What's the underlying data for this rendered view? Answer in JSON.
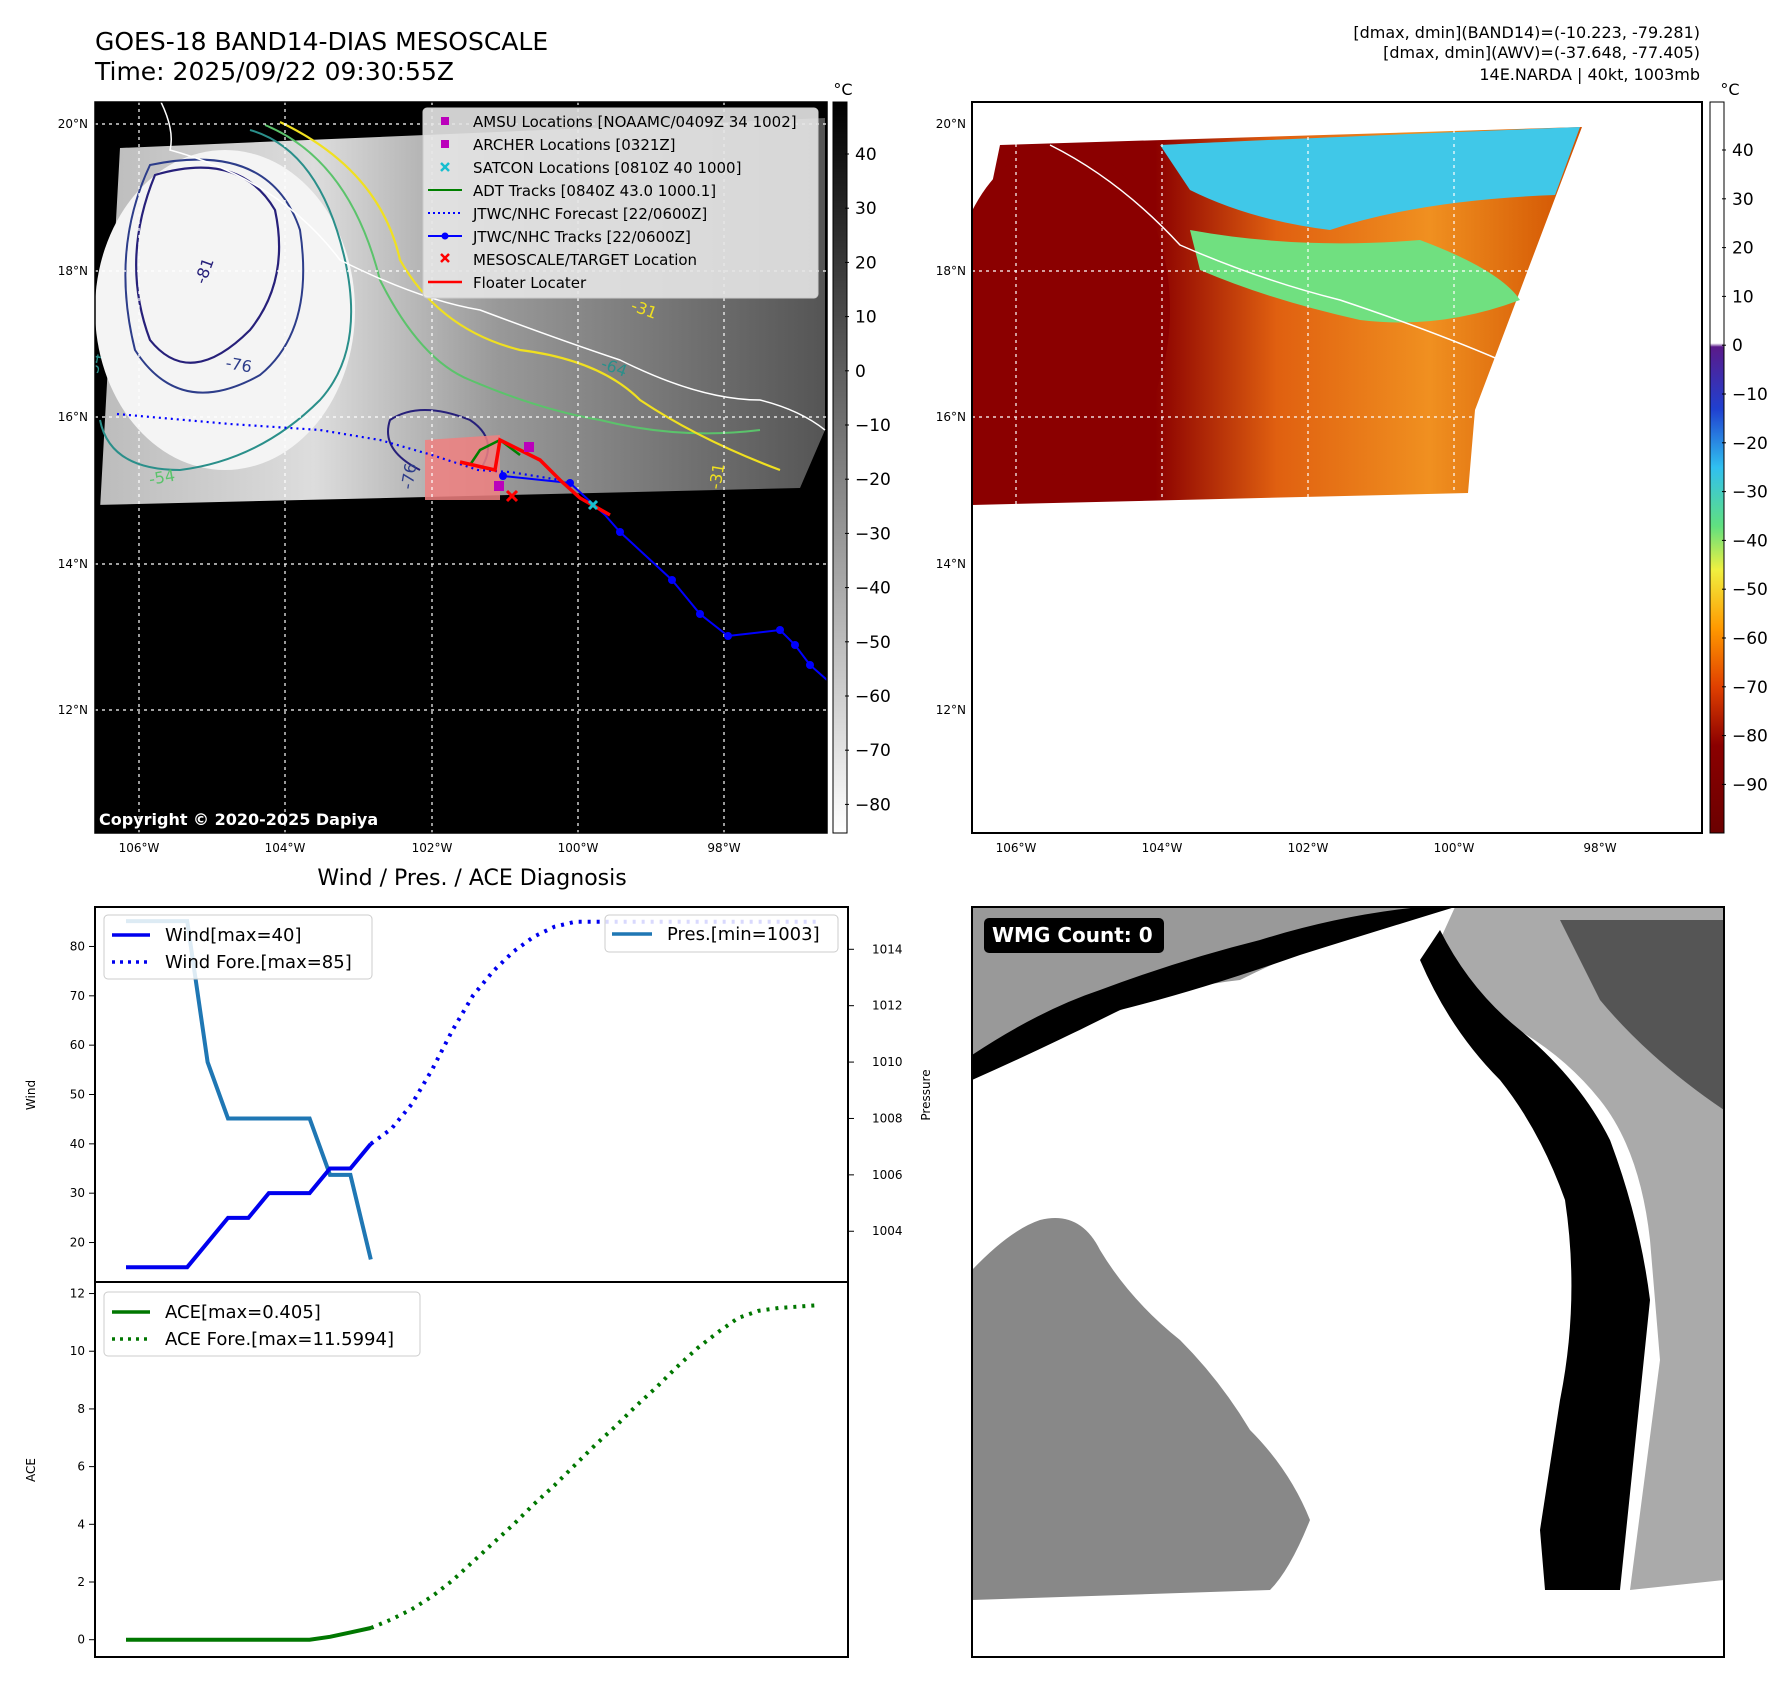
{
  "header": {
    "title_line1": "GOES-18 BAND14-DIAS MESOSCALE",
    "title_line2": "Time: 2025/09/22 09:30:55Z",
    "info_line1": "[dmax, dmin](BAND14)=(-10.223, -79.281)",
    "info_line2": "[dmax, dmin](AWV)=(-37.648, -77.405)",
    "info_line3": "14E.NARDA | 40kt, 1003mb"
  },
  "colors": {
    "wind": "#0000ee",
    "pres": "#1f77b4",
    "ace": "#007700",
    "track": "#0000ff",
    "floater": "#ff0000",
    "adt": "#008000",
    "amsu": "#bb00bb",
    "satcon": "#17becf"
  },
  "map_left": {
    "lat_ticks": [
      "20°N",
      "18°N",
      "16°N",
      "14°N",
      "12°N"
    ],
    "lon_ticks": [
      "106°W",
      "104°W",
      "102°W",
      "100°W",
      "98°W"
    ],
    "copyright": "Copyright © 2020-2025 Dapiya",
    "colorbar_unit": "°C",
    "colorbar_ticks": [
      "40",
      "30",
      "20",
      "10",
      "0",
      "−10",
      "−20",
      "−30",
      "−40",
      "−50",
      "−60",
      "−70",
      "−80"
    ],
    "contour_labels": [
      "-81",
      "-76",
      "-54",
      "-76",
      "-54",
      "-64",
      "-31",
      "-31"
    ],
    "legend": [
      {
        "label": "AMSU Locations [NOAAMC/0409Z 34 1002]",
        "icon": "magenta-square"
      },
      {
        "label": "ARCHER Locations [0321Z]",
        "icon": "magenta-square"
      },
      {
        "label": "SATCON Locations [0810Z 40 1000]",
        "icon": "cyan-x"
      },
      {
        "label": "ADT Tracks [0840Z 43.0 1000.1]",
        "icon": "green-line"
      },
      {
        "label": "JTWC/NHC Forecast [22/0600Z]",
        "icon": "blue-dotted-line"
      },
      {
        "label": "JTWC/NHC Tracks [22/0600Z]",
        "icon": "blue-line-dot"
      },
      {
        "label": "MESOSCALE/TARGET Location",
        "icon": "red-x"
      },
      {
        "label": "Floater Locater",
        "icon": "red-line"
      }
    ]
  },
  "map_right": {
    "lat_ticks": [
      "20°N",
      "18°N",
      "16°N",
      "14°N",
      "12°N"
    ],
    "lon_ticks": [
      "106°W",
      "104°W",
      "102°W",
      "100°W",
      "98°W"
    ],
    "colorbar_unit": "°C",
    "colorbar_ticks": [
      "40",
      "30",
      "20",
      "10",
      "0",
      "−10",
      "−20",
      "−30",
      "−40",
      "−50",
      "−60",
      "−70",
      "−80",
      "−90"
    ]
  },
  "wmg": {
    "label": "WMG Count: 0"
  },
  "chart_data": [
    {
      "type": "line",
      "title": "Wind / Pres. / ACE Diagnosis",
      "ylabel": "Wind",
      "ylabel_right": "Pressure",
      "ylim": [
        12,
        88
      ],
      "ylim_right": [
        1002.2,
        1015.5
      ],
      "yticks": [
        20,
        30,
        40,
        50,
        60,
        70,
        80
      ],
      "yticks_right": [
        1004,
        1006,
        1008,
        1010,
        1012,
        1014
      ],
      "legend_left": [
        "Wind[max=40]",
        "Wind Fore.[max=85]"
      ],
      "legend_right": [
        "Pres.[min=1003]"
      ],
      "series": [
        {
          "name": "Wind[max=40]",
          "x": [
            0,
            3,
            5,
            6,
            7,
            8,
            9,
            10,
            11,
            12
          ],
          "values": [
            15,
            15,
            25,
            25,
            30,
            30,
            30,
            35,
            35,
            40
          ]
        },
        {
          "name": "Wind Fore.[max=85]",
          "x": [
            12,
            13,
            14,
            15,
            16,
            17,
            18,
            19,
            20,
            21,
            22,
            23,
            24,
            25,
            26,
            27,
            28,
            29,
            30,
            31,
            32,
            33,
            34
          ],
          "values": [
            40,
            43,
            48,
            55,
            63,
            70,
            75,
            79,
            82,
            84,
            85,
            85,
            85,
            85,
            85,
            85,
            85,
            85,
            85,
            85,
            85,
            85,
            85
          ]
        },
        {
          "name": "Pres.[min=1003]",
          "x": [
            0,
            3,
            4,
            5,
            6,
            7,
            8,
            9,
            10,
            11,
            12
          ],
          "values": [
            1015,
            1015,
            1010,
            1008,
            1008,
            1008,
            1008,
            1008,
            1006,
            1006,
            1003
          ]
        }
      ]
    },
    {
      "type": "line",
      "ylabel": "ACE",
      "ylim": [
        -0.6,
        12.4
      ],
      "yticks": [
        0,
        2,
        4,
        6,
        8,
        10,
        12
      ],
      "legend": [
        "ACE[max=0.405]",
        "ACE Fore.[max=11.5994]"
      ],
      "series": [
        {
          "name": "ACE[max=0.405]",
          "x": [
            0,
            3,
            5,
            6,
            7,
            8,
            9,
            10,
            11,
            12
          ],
          "values": [
            0,
            0,
            0,
            0,
            0,
            0,
            0,
            0.1,
            0.25,
            0.405
          ]
        },
        {
          "name": "ACE Fore.[max=11.5994]",
          "x": [
            12,
            13,
            14,
            15,
            16,
            17,
            18,
            19,
            20,
            21,
            22,
            23,
            24,
            25,
            26,
            27,
            28,
            29,
            30,
            31,
            32,
            33,
            34
          ],
          "values": [
            0.405,
            0.7,
            1.05,
            1.5,
            2.05,
            2.7,
            3.35,
            4.0,
            4.7,
            5.35,
            6.05,
            6.75,
            7.4,
            8.1,
            8.75,
            9.45,
            10.1,
            10.65,
            11.15,
            11.4,
            11.5,
            11.55,
            11.5994
          ]
        }
      ]
    }
  ]
}
